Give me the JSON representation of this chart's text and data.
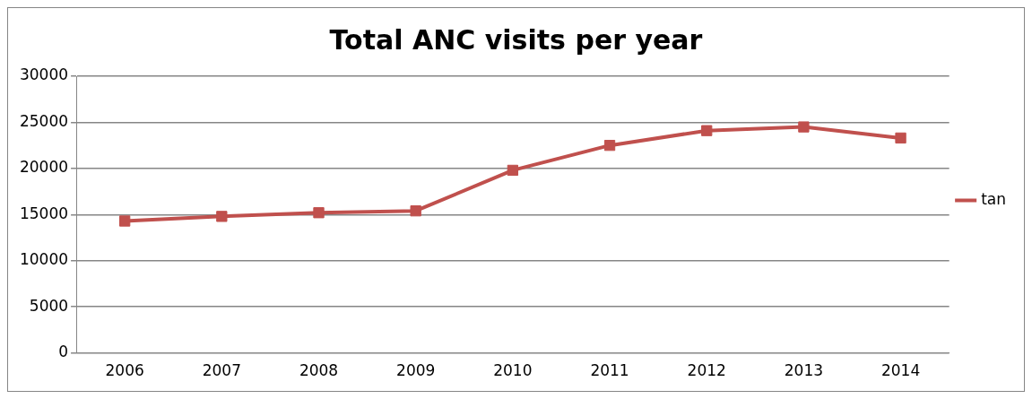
{
  "chart_data": {
    "type": "line",
    "title": "Total ANC visits per year",
    "categories": [
      "2006",
      "2007",
      "2008",
      "2009",
      "2010",
      "2011",
      "2012",
      "2013",
      "2014"
    ],
    "series": [
      {
        "name": "tan",
        "color": "#c0504d",
        "values": [
          14300,
          14800,
          15200,
          15400,
          19800,
          22500,
          24100,
          24500,
          23300
        ]
      }
    ],
    "ylim": [
      0,
      30000
    ],
    "yticks": [
      0,
      5000,
      10000,
      15000,
      20000,
      25000,
      30000
    ],
    "grid": "y",
    "legend": "right",
    "marker": "square",
    "line_style": "solid"
  }
}
